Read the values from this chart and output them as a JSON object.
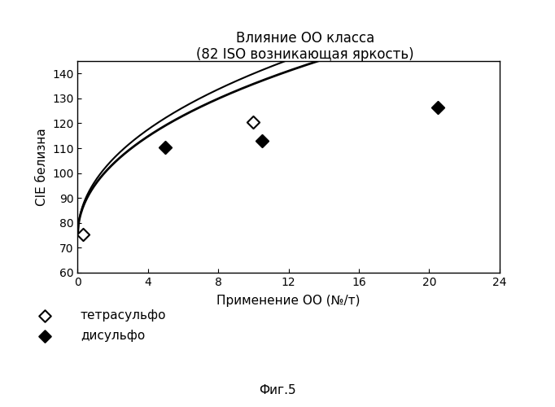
{
  "title_line1": "Влияние ОО класса",
  "title_line2": "(82 ISO возникающая яркость)",
  "xlabel": "Применение ОО (№/т)",
  "ylabel": "CIE белизна",
  "xlim": [
    0,
    24
  ],
  "ylim": [
    60,
    145
  ],
  "xticks": [
    0,
    4,
    8,
    12,
    16,
    20,
    24
  ],
  "yticks": [
    60,
    70,
    80,
    90,
    100,
    110,
    120,
    130,
    140
  ],
  "tetrasulfo_points_x": [
    0.3,
    10.0
  ],
  "tetrasulfo_points_y": [
    75.5,
    120.5
  ],
  "disulfo_points_x": [
    5.0,
    10.5,
    20.5
  ],
  "disulfo_points_y": [
    110.5,
    113.0,
    126.5
  ],
  "legend_label1": "тетрасульфо",
  "legend_label2": "дисульфо",
  "fig_label": "Фиг.5",
  "background_color": "#ffffff",
  "title_fontsize": 12,
  "label_fontsize": 11,
  "tick_fontsize": 10,
  "legend_fontsize": 11,
  "curve1_a": 75.0,
  "curve1_b": 18.0,
  "curve1_c": -0.4,
  "curve1_d": 0.55,
  "curve2_a": 75.0,
  "curve2_b": 17.0,
  "curve2_c": -0.38,
  "curve2_d": 0.54
}
